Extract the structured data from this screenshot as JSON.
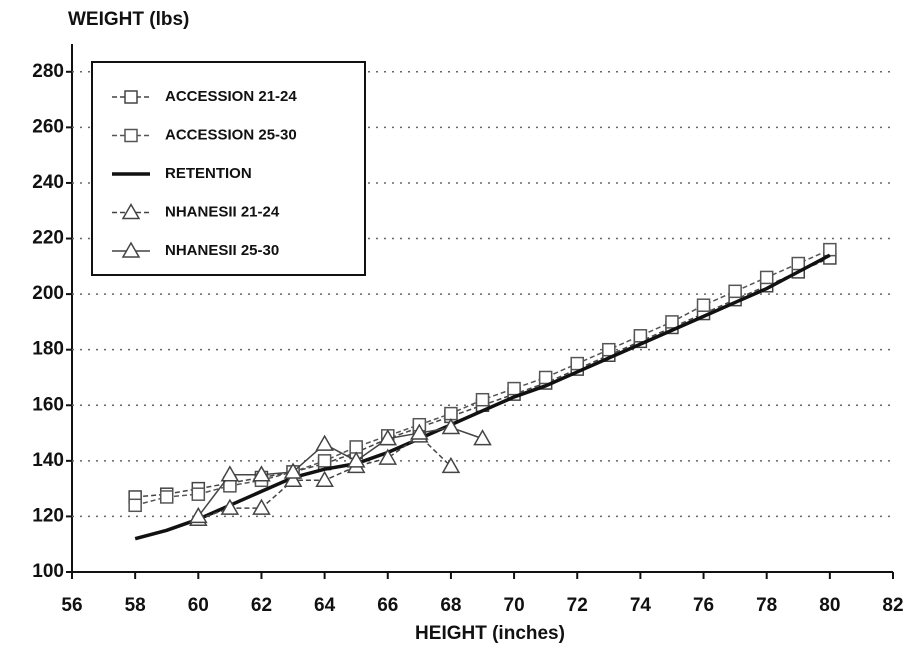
{
  "chart_data": {
    "type": "line",
    "y_label": "WEIGHT (lbs)",
    "x_label": "HEIGHT (inches)",
    "x": [
      58,
      59,
      60,
      61,
      62,
      63,
      64,
      65,
      66,
      67,
      68,
      69,
      70,
      71,
      72,
      73,
      74,
      75,
      76,
      77,
      78,
      79,
      80
    ],
    "series": [
      {
        "name": "ACCESSION 21-24",
        "color": "#444",
        "dash": true,
        "marker": "square",
        "values": [
          127,
          128,
          130,
          132,
          134,
          136,
          139,
          143,
          148,
          152,
          156,
          160,
          164,
          168,
          173,
          178,
          183,
          188,
          193,
          198,
          203,
          208,
          213
        ]
      },
      {
        "name": "ACCESSION 25-30",
        "color": "#555",
        "dash": true,
        "marker": "square",
        "values": [
          124,
          127,
          128,
          131,
          133,
          136,
          140,
          145,
          149,
          153,
          157,
          162,
          166,
          170,
          175,
          180,
          185,
          190,
          196,
          201,
          206,
          211,
          216
        ]
      },
      {
        "name": "RETENTION",
        "color": "#111",
        "dash": false,
        "marker": "none",
        "values": [
          112,
          115,
          119,
          124,
          129,
          134,
          137,
          139,
          143,
          148,
          153,
          158,
          163,
          167,
          172,
          177,
          182,
          187,
          192,
          197,
          202,
          208,
          214
        ]
      },
      {
        "name": "NHANESII 21-24",
        "color": "#444",
        "dash": true,
        "marker": "triangle",
        "values": [
          null,
          null,
          119,
          123,
          123,
          133,
          133,
          138,
          141,
          149,
          138,
          null,
          null,
          null,
          null,
          null,
          null,
          null,
          null,
          null,
          null,
          null,
          null
        ]
      },
      {
        "name": "NHANESII 25-30",
        "color": "#444",
        "dash": false,
        "marker": "triangle",
        "values": [
          null,
          null,
          120,
          135,
          135,
          136,
          146,
          140,
          148,
          150,
          152,
          148,
          null,
          null,
          null,
          null,
          null,
          null,
          null,
          null,
          null,
          null,
          null
        ]
      }
    ],
    "xlim": [
      56,
      82
    ],
    "xticks": [
      56,
      58,
      60,
      62,
      64,
      66,
      68,
      70,
      72,
      74,
      76,
      78,
      80,
      82
    ],
    "ylim": [
      100,
      290
    ],
    "yticks": [
      100,
      120,
      140,
      160,
      180,
      200,
      220,
      240,
      260,
      280
    ],
    "grid": true,
    "legend": "top-left"
  }
}
